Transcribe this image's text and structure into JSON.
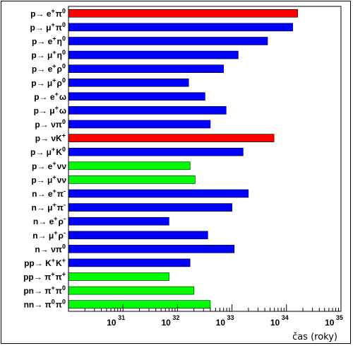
{
  "chart_data": {
    "type": "bar",
    "orientation": "horizontal",
    "x_scale": "log",
    "xlim": [
      1e+30,
      1e+35
    ],
    "xlabel": "čas (roky)",
    "ylabel": "",
    "title": "",
    "grid": false,
    "x_ticks": [
      {
        "mantissa": "10",
        "exp": "31"
      },
      {
        "mantissa": "10",
        "exp": "32"
      },
      {
        "mantissa": "10",
        "exp": "33"
      },
      {
        "mantissa": "10",
        "exp": "34"
      },
      {
        "mantissa": "10",
        "exp": "35"
      }
    ],
    "colors": {
      "red": "#ff0000",
      "blue": "#0000ff",
      "green": "#00ff00"
    },
    "bars": [
      {
        "label": "p→ e⁺π⁰",
        "prefix": "p",
        "main": "e",
        "sup": "+",
        "main2": "π",
        "sup2": "0",
        "value": 1.6e+34,
        "color": "red"
      },
      {
        "label": "p→ μ⁺π⁰",
        "prefix": "p",
        "main": "μ",
        "sup": "+",
        "main2": "π",
        "sup2": "0",
        "value": 1.3e+34,
        "color": "blue"
      },
      {
        "label": "p→ e⁺η⁰",
        "prefix": "p",
        "main": "e",
        "sup": "+",
        "main2": "η",
        "sup2": "0",
        "value": 4.5e+33,
        "color": "blue"
      },
      {
        "label": "p→ μ⁺η⁰",
        "prefix": "p",
        "main": "μ",
        "sup": "+",
        "main2": "η",
        "sup2": "0",
        "value": 1.3e+33,
        "color": "blue"
      },
      {
        "label": "p→ e⁺ρ⁰",
        "prefix": "p",
        "main": "e",
        "sup": "+",
        "main2": "ρ",
        "sup2": "0",
        "value": 7e+32,
        "color": "blue"
      },
      {
        "label": "p→ μ⁺ρ⁰",
        "prefix": "p",
        "main": "μ",
        "sup": "+",
        "main2": "ρ",
        "sup2": "0",
        "value": 1.6e+32,
        "color": "blue"
      },
      {
        "label": "p→ e⁺ω",
        "prefix": "p",
        "main": "e",
        "sup": "+",
        "main2": "ω",
        "sup2": "",
        "value": 3.2e+32,
        "color": "blue"
      },
      {
        "label": "p→ μ⁺ω",
        "prefix": "p",
        "main": "μ",
        "sup": "+",
        "main2": "ω",
        "sup2": "",
        "value": 7.8e+32,
        "color": "blue"
      },
      {
        "label": "p→ νπ⁰",
        "prefix": "p",
        "main": "ν",
        "sup": "",
        "main2": "π",
        "sup2": "0",
        "value": 4e+32,
        "color": "blue"
      },
      {
        "label": "p→ νK⁺",
        "prefix": "p",
        "main": "νK",
        "sup": "+",
        "main2": "",
        "sup2": "",
        "value": 5.9e+33,
        "color": "red"
      },
      {
        "label": "p→ μ⁺K⁰",
        "prefix": "p",
        "main": "μ",
        "sup": "+",
        "main2": "K",
        "sup2": "0",
        "value": 1.6e+33,
        "color": "blue"
      },
      {
        "label": "p→ e⁺νν",
        "prefix": "p",
        "main": "e",
        "sup": "+",
        "main2": "νν",
        "sup2": "",
        "value": 1.7e+32,
        "color": "green"
      },
      {
        "label": "p→ μ⁺νν",
        "prefix": "p",
        "main": "μ",
        "sup": "+",
        "main2": "νν",
        "sup2": "",
        "value": 2.1e+32,
        "color": "green"
      },
      {
        "label": "n→ e⁺π⁻",
        "prefix": "n",
        "main": "e",
        "sup": "+",
        "main2": "π",
        "sup2": "-",
        "value": 2e+33,
        "color": "blue"
      },
      {
        "label": "n→ μ⁺π⁻",
        "prefix": "n",
        "main": "μ",
        "sup": "+",
        "main2": "π",
        "sup2": "-",
        "value": 1e+33,
        "color": "blue"
      },
      {
        "label": "n→ e⁺ρ⁻",
        "prefix": "n",
        "main": "e",
        "sup": "+",
        "main2": "ρ",
        "sup2": "-",
        "value": 7e+31,
        "color": "blue"
      },
      {
        "label": "n→ μ⁺ρ⁻",
        "prefix": "n",
        "main": "μ",
        "sup": "+",
        "main2": "ρ",
        "sup2": "-",
        "value": 3.6e+32,
        "color": "blue"
      },
      {
        "label": "n→ νπ⁰",
        "prefix": "n",
        "main": "ν",
        "sup": "",
        "main2": "π",
        "sup2": "0",
        "value": 1.1e+33,
        "color": "blue"
      },
      {
        "label": "pp→ K⁺K⁺",
        "prefix": "pp",
        "main": "K",
        "sup": "+",
        "main2": "K",
        "sup2": "+",
        "value": 1.7e+32,
        "color": "blue"
      },
      {
        "label": "pp→ π⁺π⁺",
        "prefix": "pp",
        "main": "π",
        "sup": "+",
        "main2": "π",
        "sup2": "+",
        "value": 7e+31,
        "color": "green"
      },
      {
        "label": "pn→ π⁺π⁰",
        "prefix": "pn",
        "main": "π",
        "sup": "+",
        "main2": "π",
        "sup2": "0",
        "value": 2e+32,
        "color": "green"
      },
      {
        "label": "nn→ π⁰π⁰",
        "prefix": "nn",
        "main": "π",
        "sup": "0",
        "main2": "π",
        "sup2": "0",
        "value": 4e+32,
        "color": "green"
      }
    ]
  }
}
